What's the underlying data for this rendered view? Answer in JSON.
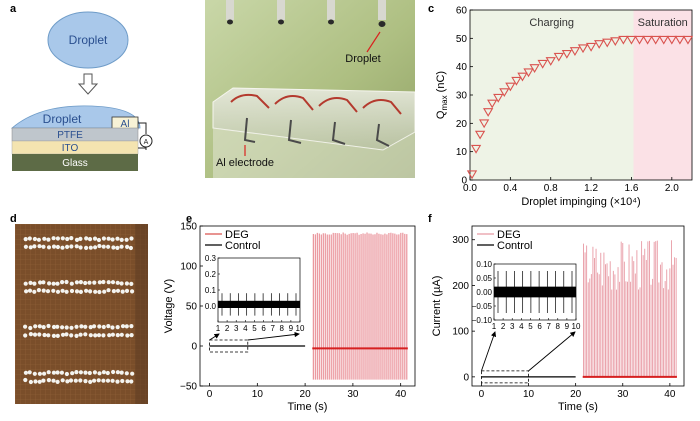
{
  "panel_labels": {
    "a": "a",
    "b": "b",
    "c": "c",
    "d": "d",
    "e": "e",
    "f": "f"
  },
  "panel_a": {
    "droplet_label": "Droplet",
    "device_droplet_label": "Droplet",
    "al_label": "Al",
    "ptfe_label": "PTFE",
    "ito_label": "ITO",
    "glass_label": "Glass",
    "meter_label": "A",
    "colors": {
      "droplet": "#a9c8ea",
      "ptfe": "#bfc6cc",
      "ito": "#f4e4b0",
      "glass": "#5d6b46"
    }
  },
  "panel_b": {
    "droplet_label": "Droplet",
    "electrode_label": "Al electrode"
  },
  "chart_data": [
    {
      "id": "c",
      "type": "scatter",
      "title": "",
      "xlabel": "Droplet impinging (×10⁴)",
      "ylabel": "Q_max (nC)",
      "ylabel_main": "Q",
      "ylabel_sub": "max",
      "ylabel_unit": " (nC)",
      "xlim": [
        0,
        2.2
      ],
      "ylim": [
        0,
        60
      ],
      "xticks": [
        0.0,
        0.4,
        0.8,
        1.2,
        1.6,
        2.0
      ],
      "xtick_labels": [
        "0.0",
        "0.4",
        "0.8",
        "1.2",
        "1.6",
        "2.0"
      ],
      "yticks": [
        0,
        10,
        20,
        30,
        40,
        50,
        60
      ],
      "ytick_labels": [
        "0",
        "10",
        "20",
        "30",
        "40",
        "50",
        "60"
      ],
      "regions": [
        {
          "label": "Charging",
          "x": [
            0,
            1.62
          ],
          "color": "#eef3e6"
        },
        {
          "label": "Saturation",
          "x": [
            1.62,
            2.2
          ],
          "color": "#fbe1e6"
        }
      ],
      "series": [
        {
          "marker": "triangle-down",
          "color": "#d9534f",
          "x": [
            0.02,
            0.06,
            0.1,
            0.14,
            0.18,
            0.22,
            0.28,
            0.34,
            0.4,
            0.46,
            0.52,
            0.58,
            0.64,
            0.72,
            0.8,
            0.88,
            0.96,
            1.04,
            1.12,
            1.2,
            1.28,
            1.36,
            1.44,
            1.52,
            1.6,
            1.68,
            1.76,
            1.84,
            1.92,
            2.0,
            2.08,
            2.16
          ],
          "y": [
            2,
            11,
            16,
            20,
            24,
            27,
            29,
            31,
            33,
            35,
            36.5,
            38,
            39.5,
            41,
            42,
            43.5,
            44.5,
            45.5,
            46.5,
            47,
            48,
            48.5,
            49,
            49.5,
            49.5,
            49.5,
            49.5,
            49.5,
            49.5,
            49.5,
            49.5,
            49.5
          ]
        }
      ]
    },
    {
      "id": "e",
      "type": "line",
      "xlabel": "Time (s)",
      "ylabel": "Voltage (V)",
      "xlim": [
        -2,
        43
      ],
      "ylim": [
        -50,
        150
      ],
      "xticks": [
        0,
        10,
        20,
        30,
        40
      ],
      "xtick_labels": [
        "0",
        "10",
        "20",
        "30",
        "40"
      ],
      "yticks": [
        -50,
        0,
        50,
        100,
        150
      ],
      "ytick_labels": [
        "−50",
        "0",
        "50",
        "100",
        "150"
      ],
      "legend": {
        "position": "top-left",
        "entries": [
          {
            "name": "DEG",
            "color": "#d9534f"
          },
          {
            "name": "Control",
            "color": "#000000"
          }
        ]
      },
      "series": [
        {
          "name": "DEG",
          "color": "#e3707a",
          "t_start": 21.5,
          "t_end": 41.5,
          "baseline": -3,
          "peak": 142,
          "trough": -42,
          "spikes": 48
        },
        {
          "name": "Control",
          "color": "#000000",
          "t_start": 0,
          "t_end": 20,
          "baseline": 0,
          "amplitude": 1.5
        }
      ],
      "inset": {
        "xlim": [
          1,
          10
        ],
        "ylim": [
          -0.1,
          0.3
        ],
        "xticks": [
          1,
          2,
          3,
          4,
          5,
          6,
          7,
          8,
          9,
          10
        ],
        "xtick_labels": [
          "1",
          "2",
          "3",
          "4",
          "5",
          "6",
          "7",
          "8",
          "9",
          "10"
        ],
        "yticks": [
          0.0,
          0.1,
          0.2,
          0.3
        ],
        "ytick_labels": [
          "0.0",
          "0.1",
          "0.2",
          "0.3"
        ],
        "band": [
          0.0,
          0.02
        ],
        "spike_top": 0.08,
        "spike_bottom": -0.06,
        "zoom_window": [
          0,
          8
        ]
      }
    },
    {
      "id": "f",
      "type": "line",
      "xlabel": "Time (s)",
      "ylabel": "Current (µA)",
      "xlim": [
        -2,
        43
      ],
      "ylim": [
        -20,
        330
      ],
      "xticks": [
        0,
        10,
        20,
        30,
        40
      ],
      "xtick_labels": [
        "0",
        "10",
        "20",
        "30",
        "40"
      ],
      "yticks": [
        0,
        100,
        200,
        300
      ],
      "ytick_labels": [
        "0",
        "100",
        "200",
        "300"
      ],
      "legend": {
        "position": "top-left",
        "entries": [
          {
            "name": "DEG",
            "color": "#e89aa4"
          },
          {
            "name": "Control",
            "color": "#000000"
          }
        ]
      },
      "series": [
        {
          "name": "DEG",
          "color": "#e89aa4",
          "t_start": 21.5,
          "t_end": 41.5,
          "baseline": 0,
          "peak_min": 190,
          "peak_max": 305,
          "spikes": 60
        },
        {
          "name": "Control",
          "color": "#000000",
          "t_start": 0,
          "t_end": 20,
          "baseline": 0,
          "amplitude": 2
        }
      ],
      "inset": {
        "xlim": [
          1,
          10
        ],
        "ylim": [
          -0.1,
          0.1
        ],
        "xticks": [
          1,
          2,
          3,
          4,
          5,
          6,
          7,
          8,
          9,
          10
        ],
        "xtick_labels": [
          "1",
          "2",
          "3",
          "4",
          "5",
          "6",
          "7",
          "8",
          "9",
          "10"
        ],
        "yticks": [
          -0.1,
          -0.05,
          0.0,
          0.05,
          0.1
        ],
        "ytick_labels": [
          "−0.10",
          "−0.05",
          "0.00",
          "0.05",
          "0.10"
        ],
        "band": [
          -0.012,
          0.012
        ],
        "spike_top": 0.075,
        "spike_bottom": -0.075,
        "zoom_window": [
          0,
          10
        ]
      }
    }
  ]
}
